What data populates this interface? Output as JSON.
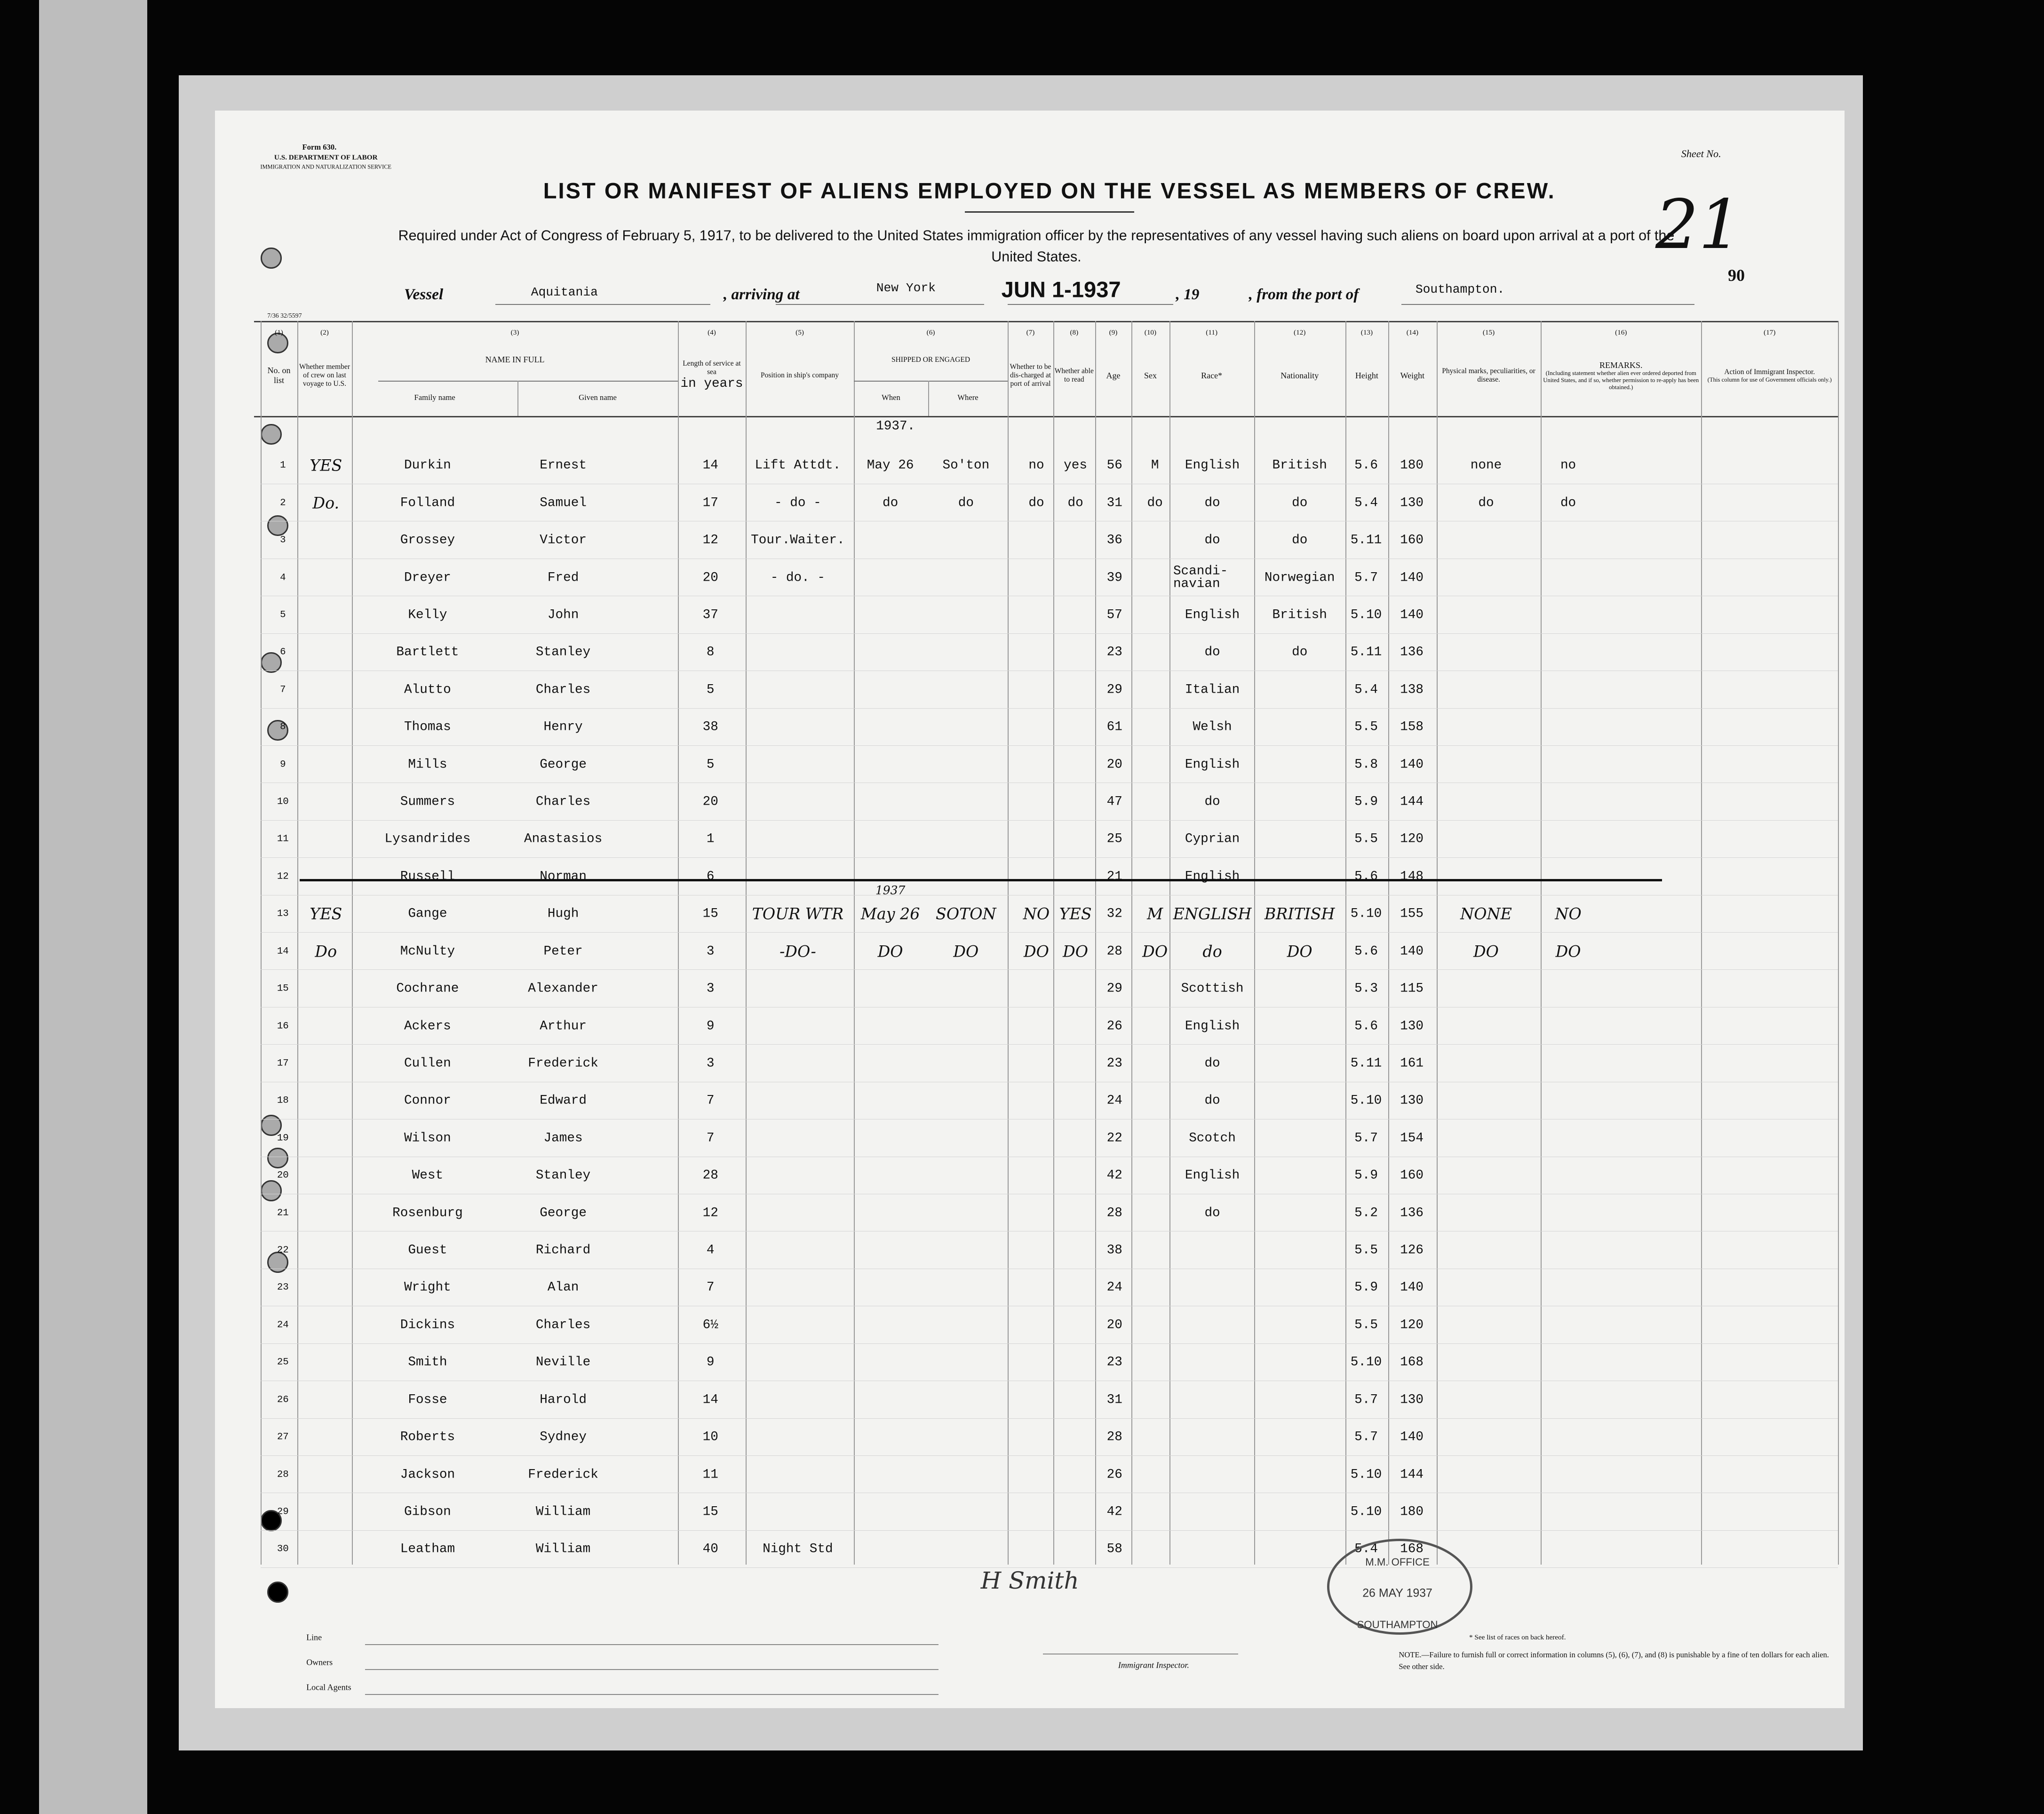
{
  "header": {
    "form": "Form 630.",
    "department": "U.S. DEPARTMENT OF LABOR",
    "service": "IMMIGRATION AND NATURALIZATION SERVICE",
    "sheet_label": "Sheet No.",
    "sheet_number": "21",
    "page_number": "90",
    "title": "LIST OR MANIFEST OF ALIENS EMPLOYED ON THE VESSEL AS MEMBERS OF CREW.",
    "subtitle": "Required under Act of Congress of February 5, 1917, to be delivered to the United States immigration officer by the representatives of any vessel having such aliens on board upon arrival at a port of the United States.",
    "vessel_label": "Vessel",
    "vessel": "Aquitania",
    "arriving_label": ", arriving at",
    "port": "New York",
    "date": "JUN 1-1937",
    "year_label": ", 19",
    "from_label": ", from the port of",
    "from_port": "Southampton.",
    "form_code": "7/36 32/5597"
  },
  "table": {
    "columns": [
      {
        "number": "(1)",
        "label": "No. on list"
      },
      {
        "number": "(2)",
        "label": "Whether member of crew on last voyage to U.S."
      },
      {
        "number": "(3)",
        "label": "NAME IN FULL",
        "sub": [
          "Family name",
          "Given name"
        ]
      },
      {
        "number": "(4)",
        "label": "Length of service at sea",
        "note": "in years"
      },
      {
        "number": "(5)",
        "label": "Position in ship's company"
      },
      {
        "number": "(6)",
        "label": "SHIPPED OR ENGAGED",
        "sub": [
          "When",
          "Where"
        ]
      },
      {
        "number": "(7)",
        "label": "Whether to be dis-charged at port of arrival"
      },
      {
        "number": "(8)",
        "label": "Whether able to read"
      },
      {
        "number": "(9)",
        "label": "Age"
      },
      {
        "number": "(10)",
        "label": "Sex"
      },
      {
        "number": "(11)",
        "label": "Race*"
      },
      {
        "number": "(12)",
        "label": "Nationality"
      },
      {
        "number": "(13)",
        "label": "Height"
      },
      {
        "number": "(14)",
        "label": "Weight"
      },
      {
        "number": "(15)",
        "label": "Physical marks, peculiarities, or disease."
      },
      {
        "number": "(16)",
        "label": "REMARKS.",
        "note": "(Including statement whether alien ever ordered deported from United States, and if so, whether permission to re-apply has been obtained.)"
      },
      {
        "number": "(17)",
        "label": "Action of Immigrant Inspector.",
        "note": "(This column for use of Government officials only.)"
      }
    ],
    "year_note": "1937.",
    "rows": [
      {
        "no": 1,
        "crew": "YES",
        "family": "Durkin",
        "given": "Ernest",
        "service": 14,
        "position": "Lift Attdt.",
        "when": "May 26",
        "where": "So'ton",
        "discharged": "no",
        "read": "yes",
        "age": 56,
        "sex": "M",
        "race": "English",
        "nationality": "British",
        "height": "5.6",
        "weight": 180,
        "marks": "none",
        "remarks": "no"
      },
      {
        "no": 2,
        "crew": "Do.",
        "family": "Folland",
        "given": "Samuel",
        "service": 17,
        "position": "- do -",
        "when": "do",
        "where": "do",
        "discharged": "do",
        "read": "do",
        "age": 31,
        "sex": "do",
        "race": "do",
        "nationality": "do",
        "height": "5.4",
        "weight": 130,
        "marks": "do",
        "remarks": "do"
      },
      {
        "no": 3,
        "family": "Grossey",
        "given": "Victor",
        "service": 12,
        "position": "Tour.Waiter.",
        "age": 36,
        "race": "do",
        "nationality": "do",
        "height": "5.11",
        "weight": 160
      },
      {
        "no": 4,
        "family": "Dreyer",
        "given": "Fred",
        "service": 20,
        "position": "- do. -",
        "age": 39,
        "race": "Scandi-navian",
        "nationality": "Norwegian",
        "height": "5.7",
        "weight": 140
      },
      {
        "no": 5,
        "family": "Kelly",
        "given": "John",
        "service": 37,
        "age": 57,
        "race": "English",
        "nationality": "British",
        "height": "5.10",
        "weight": 140
      },
      {
        "no": 6,
        "family": "Bartlett",
        "given": "Stanley",
        "service": 8,
        "age": 23,
        "race": "do",
        "nationality": "do",
        "height": "5.11",
        "weight": 136
      },
      {
        "no": 7,
        "family": "Alutto",
        "given": "Charles",
        "service": 5,
        "age": 29,
        "race": "Italian",
        "height": "5.4",
        "weight": 138
      },
      {
        "no": 8,
        "family": "Thomas",
        "given": "Henry",
        "service": 38,
        "age": 61,
        "race": "Welsh",
        "height": "5.5",
        "weight": 158
      },
      {
        "no": 9,
        "family": "Mills",
        "given": "George",
        "service": 5,
        "age": 20,
        "race": "English",
        "height": "5.8",
        "weight": 140
      },
      {
        "no": 10,
        "family": "Summers",
        "given": "Charles",
        "service": 20,
        "age": 47,
        "race": "do",
        "height": "5.9",
        "weight": 144
      },
      {
        "no": 11,
        "family": "Lysandrides",
        "given": "Anastasios",
        "service": 1,
        "age": 25,
        "race": "Cyprian",
        "height": "5.5",
        "weight": 120
      },
      {
        "no": 12,
        "family": "Russell",
        "given": "Norman",
        "service": 6,
        "age": 21,
        "race": "English",
        "height": "5.6",
        "weight": 148,
        "struck": true
      },
      {
        "no": 13,
        "crew": "YES",
        "family": "Gange",
        "given": "Hugh",
        "service": 15,
        "position": "TOUR WTR",
        "when_note": "1937",
        "when": "May 26",
        "where": "SOTON",
        "discharged": "NO",
        "read": "YES",
        "age": 32,
        "sex": "M",
        "race": "ENGLISH",
        "nationality": "BRITISH",
        "height": "5.10",
        "weight": 155,
        "marks": "NONE",
        "remarks": "NO",
        "handwritten": true
      },
      {
        "no": 14,
        "crew": "Do",
        "family": "McNulty",
        "given": "Peter",
        "service": 3,
        "position": "-DO-",
        "when": "DO",
        "where": "DO",
        "discharged": "DO",
        "read": "DO",
        "age": 28,
        "sex": "DO",
        "race": "do",
        "nationality": "DO",
        "height": "5.6",
        "weight": 140,
        "marks": "DO",
        "remarks": "DO",
        "handwritten": true
      },
      {
        "no": 15,
        "family": "Cochrane",
        "given": "Alexander",
        "service": 3,
        "age": 29,
        "race": "Scottish",
        "height": "5.3",
        "weight": 115
      },
      {
        "no": 16,
        "family": "Ackers",
        "given": "Arthur",
        "service": 9,
        "age": 26,
        "race": "English",
        "height": "5.6",
        "weight": 130
      },
      {
        "no": 17,
        "family": "Cullen",
        "given": "Frederick",
        "service": 3,
        "age": 23,
        "race": "do",
        "height": "5.11",
        "weight": 161
      },
      {
        "no": 18,
        "family": "Connor",
        "given": "Edward",
        "service": 7,
        "age": 24,
        "race": "do",
        "height": "5.10",
        "weight": 130
      },
      {
        "no": 19,
        "family": "Wilson",
        "given": "James",
        "service": 7,
        "age": 22,
        "race": "Scotch",
        "height": "5.7",
        "weight": 154
      },
      {
        "no": 20,
        "family": "West",
        "given": "Stanley",
        "service": 28,
        "age": 42,
        "race": "English",
        "height": "5.9",
        "weight": 160
      },
      {
        "no": 21,
        "family": "Rosenburg",
        "given": "George",
        "service": 12,
        "age": 28,
        "race": "do",
        "height": "5.2",
        "weight": 136
      },
      {
        "no": 22,
        "family": "Guest",
        "given": "Richard",
        "service": 4,
        "age": 38,
        "height": "5.5",
        "weight": 126
      },
      {
        "no": 23,
        "family": "Wright",
        "given": "Alan",
        "service": 7,
        "age": 24,
        "height": "5.9",
        "weight": 140
      },
      {
        "no": 24,
        "family": "Dickins",
        "given": "Charles",
        "service": "6½",
        "age": 20,
        "height": "5.5",
        "weight": 120
      },
      {
        "no": 25,
        "family": "Smith",
        "given": "Neville",
        "service": 9,
        "age": 23,
        "height": "5.10",
        "weight": 168
      },
      {
        "no": 26,
        "family": "Fosse",
        "given": "Harold",
        "service": 14,
        "age": 31,
        "height": "5.7",
        "weight": 130
      },
      {
        "no": 27,
        "family": "Roberts",
        "given": "Sydney",
        "service": 10,
        "age": 28,
        "height": "5.7",
        "weight": 140
      },
      {
        "no": 28,
        "family": "Jackson",
        "given": "Frederick",
        "service": 11,
        "age": 26,
        "height": "5.10",
        "weight": 144
      },
      {
        "no": 29,
        "family": "Gibson",
        "given": "William",
        "service": 15,
        "age": 42,
        "height": "5.10",
        "weight": 180
      },
      {
        "no": 30,
        "family": "Leatham",
        "given": "William",
        "service": 40,
        "position": "Night Std",
        "age": 58,
        "height": "5.4",
        "weight": 168
      }
    ]
  },
  "footer": {
    "line_label": "Line",
    "owners_label": "Owners",
    "agents_label": "Local Agents",
    "inspector_label": "Immigrant Inspector.",
    "signature": "H Smith",
    "stamp": [
      "M.M. OFFICE",
      "26 MAY 1937",
      "SOUTHAMPTON"
    ],
    "races_note": "* See list of races on back hereof.",
    "fine_note": "NOTE.—Failure to furnish full or correct information in columns (5), (6), (7), and (8) is punishable by a fine of ten dollars for each alien. See other side."
  }
}
